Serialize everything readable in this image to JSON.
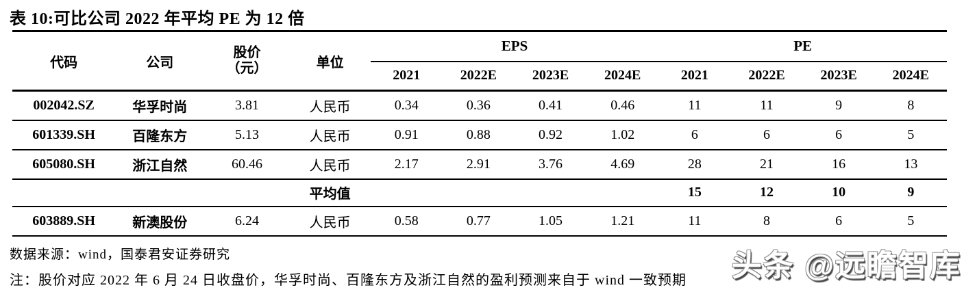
{
  "title": "表 10:可比公司 2022 年平均 PE 为 12 倍",
  "table": {
    "col_headers": {
      "code": "代码",
      "company": "公司",
      "price_line1": "股价",
      "price_line2": "（元）",
      "unit": "单位"
    },
    "groups": {
      "eps": "EPS",
      "pe": "PE"
    },
    "year_headers": [
      "2021",
      "2022E",
      "2023E",
      "2024E",
      "2021",
      "2022E",
      "2023E",
      "2024E"
    ],
    "rows": [
      {
        "code": "002042.SZ",
        "company": "华孚时尚",
        "price": "3.81",
        "unit": "人民币",
        "eps": [
          "0.34",
          "0.36",
          "0.41",
          "0.46"
        ],
        "pe": [
          "11",
          "11",
          "9",
          "8"
        ]
      },
      {
        "code": "601339.SH",
        "company": "百隆东方",
        "price": "5.13",
        "unit": "人民币",
        "eps": [
          "0.91",
          "0.88",
          "0.92",
          "1.02"
        ],
        "pe": [
          "6",
          "6",
          "6",
          "5"
        ]
      },
      {
        "code": "605080.SH",
        "company": "浙江自然",
        "price": "60.46",
        "unit": "人民币",
        "eps": [
          "2.17",
          "2.91",
          "3.76",
          "4.69"
        ],
        "pe": [
          "28",
          "21",
          "16",
          "13"
        ]
      }
    ],
    "average_row": {
      "label": "平均值",
      "pe": [
        "15",
        "12",
        "10",
        "9"
      ]
    },
    "extra_row": {
      "code": "603889.SH",
      "company": "新澳股份",
      "price": "6.24",
      "unit": "人民币",
      "eps": [
        "0.58",
        "0.77",
        "1.05",
        "1.21"
      ],
      "pe": [
        "11",
        "8",
        "6",
        "5"
      ]
    }
  },
  "footer": {
    "source": "数据来源：wind，国泰君安证券研究",
    "note": "注：股价对应 2022 年 6 月 24 日收盘价，华孚时尚、百隆东方及浙江自然的盈利预测来自于 wind 一致预期"
  },
  "watermark": "头条 @远瞻智库",
  "colors": {
    "text": "#000000",
    "background": "#ffffff",
    "border": "#000000"
  }
}
